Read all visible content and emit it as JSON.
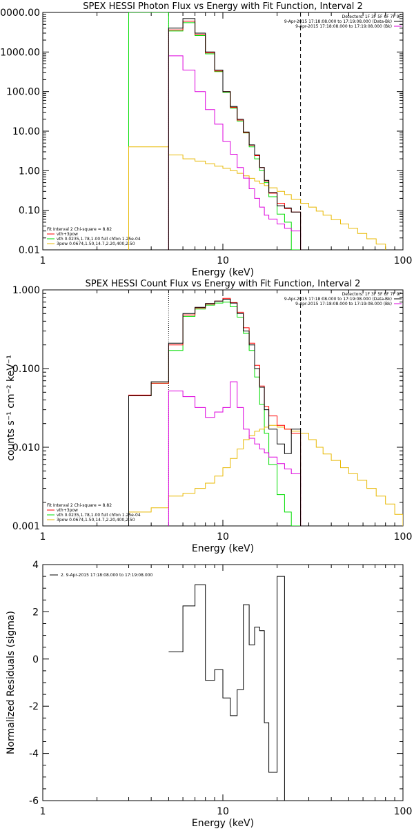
{
  "chart_data": [
    {
      "type": "line",
      "title": "SPEX HESSI Photon Flux vs Energy with Fit Function, Interval 2",
      "xlabel": "Energy (keV)",
      "ylabel": "",
      "xscale": "log",
      "yscale": "log",
      "xlim": [
        1,
        100
      ],
      "ylim": [
        0.01,
        10000
      ],
      "x_tick_labels": [
        "1",
        "10",
        "100"
      ],
      "y_tick_labels": [
        "0.01",
        "0.10",
        "1.00",
        "10.00",
        "100.00",
        "1000.00",
        "0000.00"
      ],
      "header": [
        "Detectors: 1F 3F 5F 6F 7F 9F",
        "9-Apr-2015 17:18:08.000 to 17:19:08.000 (Data-Bk)",
        "9-Apr-2015 17:18:08.000 to 17:19:08.000 (Bk)"
      ],
      "fit_info": [
        "Fit Interval 2   Chi-square = 8.82",
        "vth+3pow",
        "vth 0.0235,1.78,1.00  full chfon 1.25e-04",
        "3pow 0.0674,1.50,14.7,2.20,400,2.50"
      ],
      "vertical_lines": [
        5.0,
        27.0
      ],
      "edges": [
        3.0,
        5.0,
        6.0,
        7.0,
        8.0,
        9.0,
        10.0,
        11.0,
        12.0,
        13.0,
        14.0,
        15.0,
        16.0,
        17.0,
        18.0,
        20.0,
        22.0,
        24.0,
        27.0,
        30.0,
        33.0,
        36.0,
        40.0,
        45.0,
        50.0,
        56.0,
        63.0,
        71.0,
        80.0
      ],
      "series": [
        {
          "name": "Data-Bk",
          "color": "#000000",
          "values": [
            null,
            4000,
            7000,
            3000,
            1000,
            350,
            100,
            42,
            20,
            9.5,
            4.5,
            2.5,
            1.2,
            0.57,
            0.28,
            0.13,
            0.115,
            0.09,
            null,
            null,
            null,
            null,
            null,
            null,
            null,
            null,
            null,
            null
          ]
        },
        {
          "name": "vth+3pow",
          "color": "#ff0000",
          "values": [
            null,
            3600,
            6000,
            2800,
            950,
            330,
            100,
            40,
            19,
            9.2,
            4.4,
            2.4,
            1.2,
            0.55,
            0.27,
            0.15,
            0.11,
            0.09,
            null,
            null,
            null,
            null,
            null,
            null,
            null,
            null,
            null,
            null
          ]
        },
        {
          "name": "vth",
          "color": "#00dd00",
          "values": [
            100000,
            3400,
            5500,
            2600,
            900,
            320,
            95,
            38,
            18,
            9.0,
            4.0,
            2.0,
            1.0,
            0.5,
            0.22,
            0.08,
            0.05,
            0.01,
            null,
            null,
            null,
            null,
            null,
            null,
            null,
            null,
            null,
            null
          ]
        },
        {
          "name": "3pow",
          "color": "#e8b800",
          "values": [
            4.0,
            2.5,
            2.0,
            1.75,
            1.5,
            1.3,
            1.15,
            1.0,
            0.86,
            0.74,
            0.64,
            0.55,
            0.48,
            0.42,
            0.37,
            0.3,
            0.25,
            0.19,
            0.15,
            0.12,
            0.095,
            0.075,
            0.058,
            0.045,
            0.035,
            0.026,
            0.019,
            0.014
          ]
        },
        {
          "name": "(Bk)",
          "color": "#dd00dd",
          "values": [
            null,
            800,
            350,
            100,
            35,
            15,
            5.5,
            2.6,
            1.2,
            0.65,
            0.35,
            0.2,
            0.12,
            0.075,
            0.06,
            0.045,
            0.035,
            0.03,
            null,
            null,
            null,
            null,
            null,
            null,
            null,
            null,
            null,
            null
          ]
        }
      ]
    },
    {
      "type": "line",
      "title": "SPEX HESSI Count Flux vs Energy with Fit Function, Interval 2",
      "xlabel": "Energy (keV)",
      "ylabel": "counts s⁻¹ cm⁻² keV⁻¹",
      "xscale": "log",
      "yscale": "log",
      "xlim": [
        1,
        100
      ],
      "ylim": [
        0.001,
        1.0
      ],
      "x_tick_labels": [
        "1",
        "10",
        "100"
      ],
      "y_tick_labels": [
        "0.001",
        "0.010",
        "0.100",
        "1.000"
      ],
      "header": [
        "Detectors: 1F 3F 5F 6F 7F 9F",
        "9-Apr-2015 17:18:08.000 to 17:19:08.000 (Data-Bk)",
        "9-Apr-2015 17:18:08.000 to 17:19:08.000 (Bk)"
      ],
      "fit_info": [
        "Fit Interval 2   Chi-square = 8.82",
        "vth+3pow",
        "vth 0.0235,1.78,1.00  full chfon 1.25e-04",
        "3pow 0.0674,1.50,14.7,2.20,400,2.50"
      ],
      "vertical_lines": [
        5.0,
        27.0
      ],
      "edges": [
        3.0,
        4.0,
        5.0,
        6.0,
        7.0,
        8.0,
        9.0,
        10.0,
        11.0,
        12.0,
        13.0,
        14.0,
        15.0,
        16.0,
        17.0,
        18.0,
        20.0,
        22.0,
        24.0,
        27.0,
        30.0,
        33.0,
        36.0,
        40.0,
        45.0,
        50.0,
        56.0,
        63.0,
        71.0,
        80.0,
        90.0,
        100.0
      ],
      "series": [
        {
          "name": "Data-Bk",
          "color": "#000000",
          "values": [
            0.045,
            0.068,
            0.21,
            0.5,
            0.6,
            0.67,
            0.72,
            0.76,
            0.68,
            0.5,
            0.3,
            0.2,
            0.1,
            0.058,
            0.03,
            0.017,
            0.011,
            0.0083,
            0.017,
            null,
            null,
            null,
            null,
            null,
            null,
            null,
            null,
            null,
            null,
            null,
            null
          ]
        },
        {
          "name": "vth+3pow",
          "color": "#ff0000",
          "values": [
            0.046,
            0.065,
            0.2,
            0.48,
            0.59,
            0.66,
            0.72,
            0.78,
            0.69,
            0.52,
            0.33,
            0.21,
            0.11,
            0.06,
            0.033,
            0.025,
            0.019,
            0.017,
            0.015,
            null,
            null,
            null,
            null,
            null,
            null,
            null,
            null,
            null,
            null,
            null,
            null
          ]
        },
        {
          "name": "vth",
          "color": "#00dd00",
          "values": [
            0.045,
            0.065,
            0.17,
            0.46,
            0.57,
            0.64,
            0.68,
            0.7,
            0.61,
            0.45,
            0.28,
            0.17,
            0.078,
            0.035,
            0.015,
            0.006,
            0.0025,
            0.0015,
            0.001,
            null,
            null,
            null,
            null,
            null,
            null,
            null,
            null,
            null,
            null,
            null,
            null
          ]
        },
        {
          "name": "3pow",
          "color": "#e8b800",
          "values": [
            0.0015,
            0.0017,
            0.0024,
            0.0026,
            0.003,
            0.0035,
            0.0043,
            0.0055,
            0.0072,
            0.0095,
            0.0125,
            0.014,
            0.016,
            0.017,
            0.018,
            0.019,
            0.018,
            0.017,
            0.016,
            0.015,
            0.0125,
            0.01,
            0.0082,
            0.0068,
            0.0055,
            0.0046,
            0.0038,
            0.003,
            0.0024,
            0.0019,
            0.0014
          ]
        },
        {
          "name": "(Bk)",
          "color": "#dd00dd",
          "values": [
            null,
            null,
            0.052,
            0.044,
            0.032,
            0.024,
            0.028,
            0.032,
            0.068,
            0.032,
            0.017,
            0.013,
            0.011,
            0.0095,
            0.0085,
            0.0075,
            0.0062,
            0.0053,
            0.0046,
            null,
            null,
            null,
            null,
            null,
            null,
            null,
            null,
            null,
            null,
            null,
            null
          ]
        }
      ]
    },
    {
      "type": "line",
      "title": "",
      "xlabel": "Energy (keV)",
      "ylabel": "Normalized Residuals (sigma)",
      "xscale": "log",
      "yscale": "linear",
      "xlim": [
        1,
        100
      ],
      "ylim": [
        -6,
        4
      ],
      "x_tick_labels": [
        "1",
        "10",
        "100"
      ],
      "y_tick_labels": [
        "-6",
        "-4",
        "-2",
        "0",
        "2",
        "4"
      ],
      "legend": "2. 9-Apr-2015 17:18:08.000 to 17:19:08.000",
      "edges": [
        5.0,
        6.0,
        7.0,
        8.0,
        9.0,
        10.0,
        11.0,
        12.0,
        13.0,
        14.0,
        15.0,
        16.0,
        17.0,
        18.0,
        20.0,
        22.0,
        24.0,
        27.0
      ],
      "series": [
        {
          "name": "",
          "color": "#000000",
          "values": [
            0.3,
            2.25,
            3.15,
            -0.9,
            -0.45,
            -1.65,
            -2.4,
            -1.3,
            2.3,
            0.6,
            1.35,
            1.2,
            -2.7,
            -4.8,
            3.5,
            null,
            null
          ]
        }
      ]
    }
  ]
}
